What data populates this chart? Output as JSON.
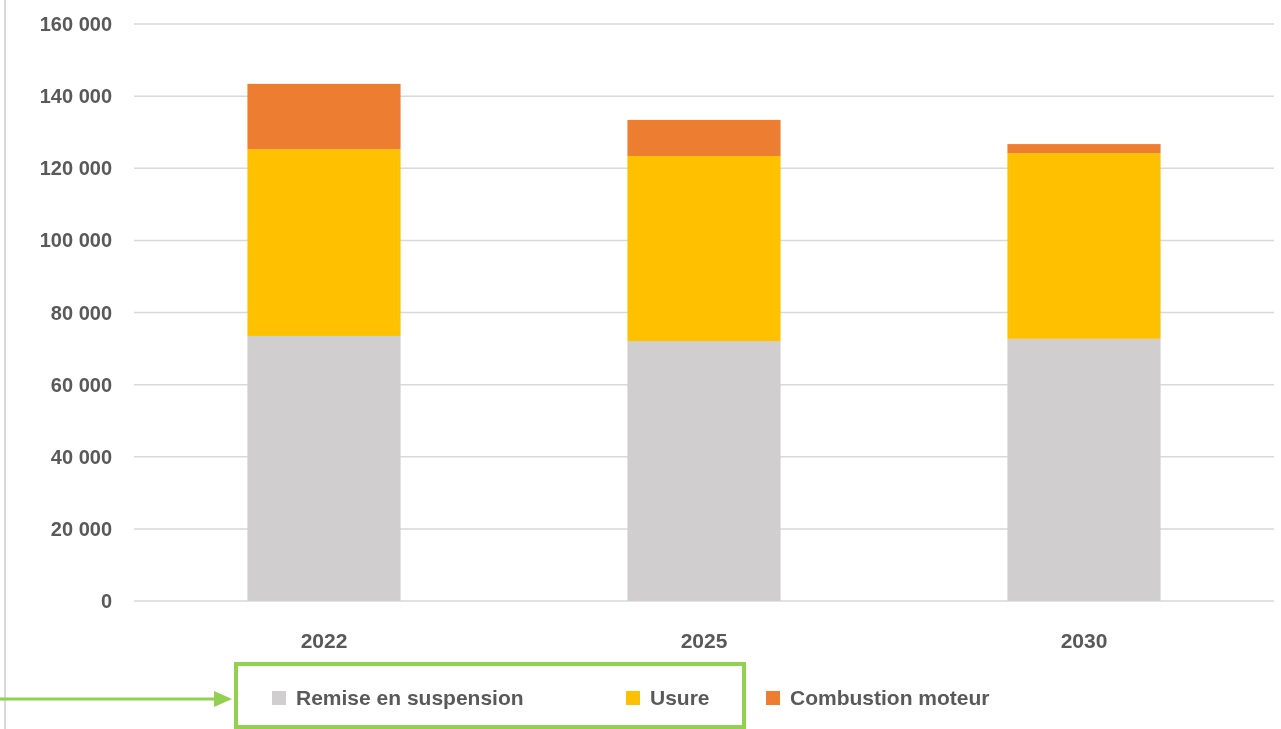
{
  "chart_data": {
    "type": "bar",
    "stacked": true,
    "categories": [
      "2022",
      "2025",
      "2030"
    ],
    "series": [
      {
        "name": "Remise en suspension",
        "color": "#d0cece",
        "values": [
          73500,
          72100,
          72700
        ]
      },
      {
        "name": "Usure",
        "color": "#ffc000",
        "values": [
          51800,
          51300,
          51500
        ]
      },
      {
        "name": "Combustion moteur",
        "color": "#ed7d31",
        "values": [
          18100,
          10000,
          2500
        ]
      }
    ],
    "ylim": [
      0,
      160000
    ],
    "yticks": [
      {
        "value": 0,
        "label": "0"
      },
      {
        "value": 20000,
        "label": "20 000"
      },
      {
        "value": 40000,
        "label": "40 000"
      },
      {
        "value": 60000,
        "label": "60 000"
      },
      {
        "value": 80000,
        "label": "80 000"
      },
      {
        "value": 100000,
        "label": "100 000"
      },
      {
        "value": 120000,
        "label": "120 000"
      },
      {
        "value": 140000,
        "label": "140 000"
      },
      {
        "value": 160000,
        "label": "160 000"
      }
    ],
    "grid": "y",
    "legend": "bottom"
  }
}
